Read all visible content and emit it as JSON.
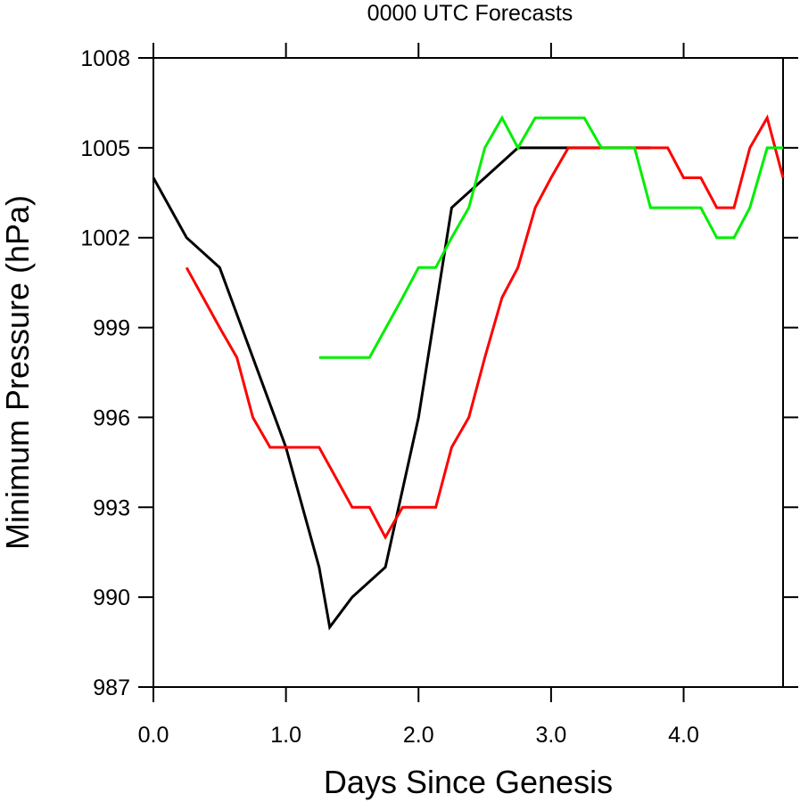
{
  "chart_data": {
    "type": "line",
    "title": "0000 UTC Forecasts",
    "xlabel": "Days Since Genesis",
    "ylabel": "Minimum Pressure (hPa)",
    "xlim": [
      0,
      4.75
    ],
    "ylim": [
      987,
      1008
    ],
    "xticks": [
      0.0,
      1.0,
      2.0,
      3.0,
      4.0
    ],
    "xtick_labels": [
      "0.0",
      "1.0",
      "2.0",
      "3.0",
      "4.0"
    ],
    "yticks": [
      987,
      990,
      993,
      996,
      999,
      1002,
      1005,
      1008
    ],
    "ytick_labels": [
      "987",
      "990",
      "993",
      "996",
      "999",
      "1002",
      "1005",
      "1008"
    ],
    "grid": false,
    "legend": "none",
    "series": [
      {
        "color": "#000000",
        "x": [
          0.0,
          0.25,
          0.5,
          0.75,
          1.0,
          1.25,
          1.33,
          1.5,
          1.75,
          2.0,
          2.25,
          2.5,
          2.75,
          3.0,
          3.25,
          3.5,
          3.75
        ],
        "y": [
          1004,
          1002,
          1001,
          998,
          995,
          991,
          989,
          990,
          991,
          996,
          1003,
          1004,
          1005,
          1005,
          1005,
          1005,
          1005
        ]
      },
      {
        "color": "#ff0000",
        "x": [
          0.25,
          0.5,
          0.63,
          0.75,
          0.88,
          1.0,
          1.25,
          1.5,
          1.63,
          1.75,
          1.88,
          2.0,
          2.13,
          2.25,
          2.38,
          2.5,
          2.63,
          2.75,
          2.88,
          3.0,
          3.13,
          3.25,
          3.5,
          3.75,
          3.88,
          4.0,
          4.13,
          4.25,
          4.38,
          4.5,
          4.63,
          4.75
        ],
        "y": [
          1001,
          999,
          998,
          996,
          995,
          995,
          995,
          993,
          993,
          992,
          993,
          993,
          993,
          995,
          996,
          998,
          1000,
          1001,
          1003,
          1004,
          1005,
          1005,
          1005,
          1005,
          1005,
          1004,
          1004,
          1003,
          1003,
          1005,
          1006,
          1004
        ]
      },
      {
        "color": "#00ee00",
        "x": [
          1.25,
          1.5,
          1.63,
          1.88,
          2.0,
          2.13,
          2.25,
          2.38,
          2.5,
          2.63,
          2.75,
          2.88,
          3.0,
          3.13,
          3.25,
          3.38,
          3.5,
          3.63,
          3.75,
          3.88,
          4.0,
          4.13,
          4.25,
          4.38,
          4.5,
          4.63,
          4.75
        ],
        "y": [
          998,
          998,
          998,
          1000,
          1001,
          1001,
          1002,
          1003,
          1005,
          1006,
          1005,
          1006,
          1006,
          1006,
          1006,
          1005,
          1005,
          1005,
          1003,
          1003,
          1003,
          1003,
          1002,
          1002,
          1003,
          1005,
          1005
        ]
      }
    ]
  }
}
